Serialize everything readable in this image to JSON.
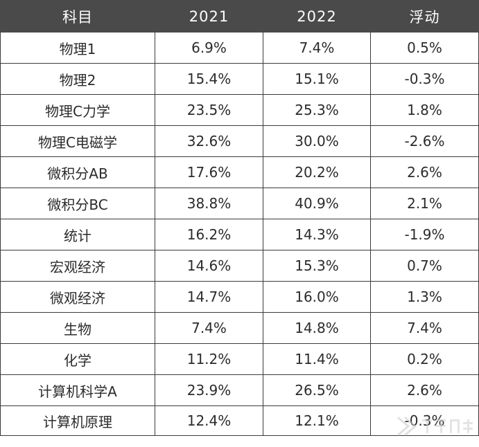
{
  "table": {
    "headers": [
      "科目",
      "2021",
      "2022",
      "浮动"
    ],
    "rows": [
      [
        "物理1",
        "6.9%",
        "7.4%",
        "0.5%"
      ],
      [
        "物理2",
        "15.4%",
        "15.1%",
        "-0.3%"
      ],
      [
        "物理C力学",
        "23.5%",
        "25.3%",
        "1.8%"
      ],
      [
        "物理C电磁学",
        "32.6%",
        "30.0%",
        "-2.6%"
      ],
      [
        "微积分AB",
        "17.6%",
        "20.2%",
        "2.6%"
      ],
      [
        "微积分BC",
        "38.8%",
        "40.9%",
        "2.1%"
      ],
      [
        "统计",
        "16.2%",
        "14.3%",
        "-1.9%"
      ],
      [
        "宏观经济",
        "14.6%",
        "15.3%",
        "0.7%"
      ],
      [
        "微观经济",
        "14.7%",
        "16.0%",
        "1.3%"
      ],
      [
        "生物",
        "7.4%",
        "14.8%",
        "7.4%"
      ],
      [
        "化学",
        "11.2%",
        "11.4%",
        "0.2%"
      ],
      [
        "计算机科学A",
        "23.9%",
        "26.5%",
        "2.6%"
      ],
      [
        "计算机原理",
        "12.4%",
        "12.1%",
        "-0.3%"
      ]
    ]
  },
  "watermark": {
    "icon": "brand-logo-icon",
    "color": "#c8c8c8"
  },
  "colors": {
    "header_bg": "#4a4a4a",
    "header_text": "#ffffff",
    "border": "#3a3a3a",
    "cell_text": "#2b2b2b"
  }
}
